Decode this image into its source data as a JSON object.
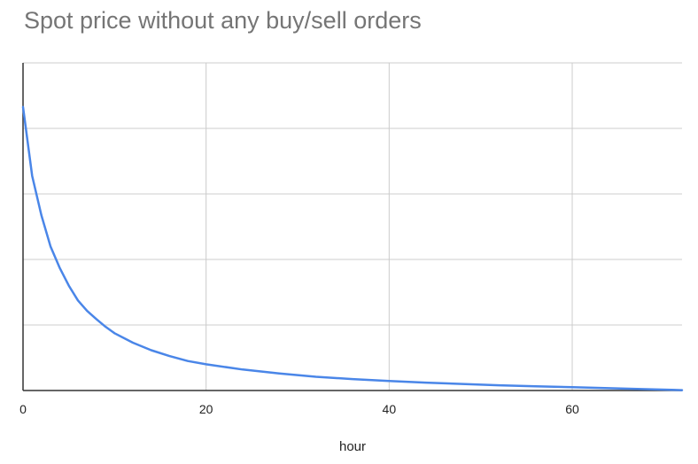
{
  "chart_data": {
    "type": "line",
    "title": "Spot price without any buy/sell orders",
    "xlabel": "hour",
    "ylabel": "",
    "xlim": [
      0,
      72
    ],
    "ylim": [
      0,
      100
    ],
    "x_ticks": [
      0,
      20,
      40,
      60
    ],
    "y_gridlines": [
      0,
      20,
      40,
      60,
      80,
      100
    ],
    "y_tick_labels_shown": false,
    "grid": true,
    "legend": "none",
    "series": [
      {
        "color": "#4a86e8",
        "x": [
          0,
          1,
          2,
          3,
          4,
          5,
          6,
          7,
          8,
          9,
          10,
          12,
          14,
          16,
          18,
          20,
          24,
          28,
          32,
          36,
          40,
          44,
          48,
          52,
          56,
          60,
          64,
          68,
          72
        ],
        "y": [
          86.5,
          65.5,
          53.5,
          44.0,
          37.5,
          32.0,
          27.5,
          24.3,
          21.8,
          19.5,
          17.5,
          14.6,
          12.3,
          10.5,
          9.0,
          8.0,
          6.4,
          5.2,
          4.2,
          3.5,
          2.9,
          2.4,
          2.0,
          1.6,
          1.3,
          1.0,
          0.7,
          0.4,
          0.1
        ]
      }
    ]
  }
}
